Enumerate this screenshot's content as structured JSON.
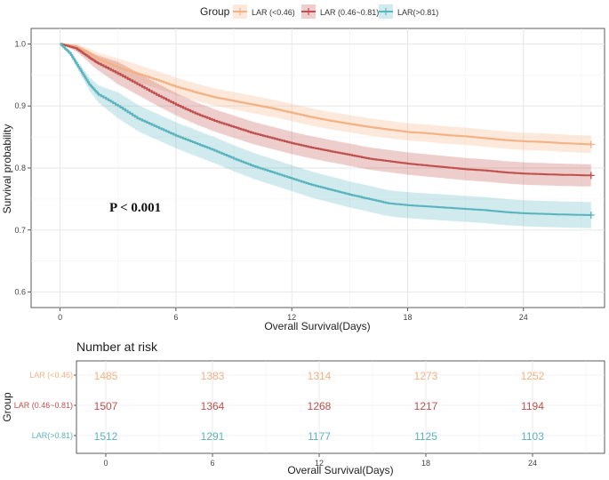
{
  "legend": {
    "title": "Group",
    "items": [
      {
        "label": "LAR (<0.46)",
        "color": "#F4B183"
      },
      {
        "label": "LAR (0.46~0.81)",
        "color": "#C0504D"
      },
      {
        "label": "LAR(>0.81)",
        "color": "#5AB4BE"
      }
    ]
  },
  "chart_data": {
    "type": "line",
    "subtype": "kaplan-meier",
    "title": "",
    "xlabel": "Overall Survival(Days)",
    "ylabel": "Survival probability",
    "xlim": [
      -1.5,
      28.2
    ],
    "ylim": [
      0.575,
      1.025
    ],
    "xticks": [
      0,
      6,
      12,
      18,
      24
    ],
    "yticks": [
      0.6,
      0.7,
      0.8,
      0.9,
      1.0
    ],
    "ytick_labels": [
      "0.6",
      "0.7",
      "0.8",
      "0.9",
      "1.0"
    ],
    "annotation": "P < 0.001",
    "grid": true,
    "confidence_bands": true,
    "series": [
      {
        "name": "LAR (<0.46)",
        "color": "#F4B183",
        "ci_halfwidth": 0.014,
        "x": [
          0,
          0.8,
          1.5,
          2,
          3,
          4,
          5,
          6,
          7,
          8,
          9,
          10,
          11,
          12,
          13,
          14,
          15,
          16,
          17,
          18,
          19,
          20,
          21,
          22,
          23,
          24,
          25,
          26,
          27.5
        ],
        "y": [
          1.0,
          0.996,
          0.985,
          0.975,
          0.962,
          0.952,
          0.942,
          0.931,
          0.922,
          0.914,
          0.908,
          0.902,
          0.896,
          0.889,
          0.882,
          0.876,
          0.871,
          0.866,
          0.862,
          0.858,
          0.856,
          0.853,
          0.851,
          0.848,
          0.845,
          0.843,
          0.842,
          0.84,
          0.838
        ]
      },
      {
        "name": "LAR (0.46~0.81)",
        "color": "#C0504D",
        "ci_halfwidth": 0.018,
        "x": [
          0,
          0.8,
          1.5,
          2,
          3,
          4,
          5,
          6,
          7,
          8,
          9,
          10,
          11,
          12,
          13,
          14,
          15,
          16,
          17,
          18,
          19,
          20,
          21,
          22,
          23,
          24,
          25,
          26,
          27.5
        ],
        "y": [
          1.0,
          0.993,
          0.978,
          0.968,
          0.952,
          0.935,
          0.918,
          0.902,
          0.888,
          0.876,
          0.866,
          0.856,
          0.848,
          0.84,
          0.833,
          0.827,
          0.821,
          0.815,
          0.811,
          0.807,
          0.804,
          0.801,
          0.798,
          0.796,
          0.793,
          0.791,
          0.79,
          0.789,
          0.788
        ]
      },
      {
        "name": "LAR(>0.81)",
        "color": "#5AB4BE",
        "ci_halfwidth": 0.021,
        "x": [
          0,
          0.5,
          1,
          1.5,
          2,
          3,
          4,
          5,
          6,
          7,
          8,
          9,
          10,
          11,
          12,
          13,
          14,
          15,
          16,
          17,
          18,
          19,
          20,
          21,
          22,
          23,
          24,
          25,
          26,
          27.5
        ],
        "y": [
          1.0,
          0.985,
          0.96,
          0.935,
          0.918,
          0.9,
          0.88,
          0.866,
          0.852,
          0.84,
          0.828,
          0.815,
          0.803,
          0.793,
          0.783,
          0.773,
          0.765,
          0.757,
          0.75,
          0.743,
          0.74,
          0.738,
          0.736,
          0.734,
          0.732,
          0.729,
          0.727,
          0.726,
          0.725,
          0.724
        ]
      }
    ]
  },
  "risk_table": {
    "title": "Number at risk",
    "ylabel": "Group",
    "xlabel": "Overall Survival(Days)",
    "times": [
      0,
      6,
      12,
      18,
      24
    ],
    "groups": [
      {
        "label": "LAR (<0.46)",
        "color": "#F4B183",
        "counts": [
          "1485",
          "1383",
          "1314",
          "1273",
          "1252"
        ]
      },
      {
        "label": "LAR (0.46~0.81)",
        "color": "#C0504D",
        "counts": [
          "1507",
          "1364",
          "1268",
          "1217",
          "1194"
        ]
      },
      {
        "label": "LAR(>0.81)",
        "color": "#5AB4BE",
        "counts": [
          "1512",
          "1291",
          "1177",
          "1125",
          "1103"
        ]
      }
    ]
  }
}
